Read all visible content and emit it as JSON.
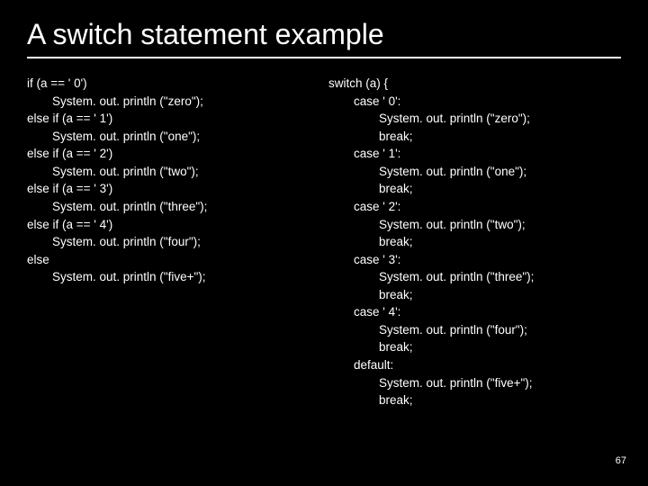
{
  "title": "A switch statement example",
  "page_number": "67",
  "left_code": [
    {
      "t": "if (a == ' 0')",
      "i": 0
    },
    {
      "t": "System. out. println (\"zero\");",
      "i": 1
    },
    {
      "t": "else if (a == ' 1')",
      "i": 0
    },
    {
      "t": "System. out. println (\"one\");",
      "i": 1
    },
    {
      "t": "else if (a == ' 2')",
      "i": 0
    },
    {
      "t": "System. out. println (\"two\");",
      "i": 1
    },
    {
      "t": "else if (a == ' 3')",
      "i": 0
    },
    {
      "t": "System. out. println (\"three\");",
      "i": 1
    },
    {
      "t": "else if (a == ' 4')",
      "i": 0
    },
    {
      "t": "System. out. println (\"four\");",
      "i": 1
    },
    {
      "t": "else",
      "i": 0
    },
    {
      "t": "System. out. println (\"five+\");",
      "i": 1
    }
  ],
  "right_code": [
    {
      "t": "switch (a) {",
      "i": 0
    },
    {
      "t": "case ' 0':",
      "i": 1
    },
    {
      "t": "System. out. println (\"zero\");",
      "i": 2
    },
    {
      "t": "break;",
      "i": 2
    },
    {
      "t": "case ' 1':",
      "i": 1
    },
    {
      "t": "System. out. println (\"one\");",
      "i": 2
    },
    {
      "t": "break;",
      "i": 2
    },
    {
      "t": "case ' 2':",
      "i": 1
    },
    {
      "t": "System. out. println (\"two\");",
      "i": 2
    },
    {
      "t": "break;",
      "i": 2
    },
    {
      "t": "case ' 3':",
      "i": 1
    },
    {
      "t": "System. out. println (\"three\");",
      "i": 2
    },
    {
      "t": "break;",
      "i": 2
    },
    {
      "t": "case ' 4':",
      "i": 1
    },
    {
      "t": "System. out. println (\"four\");",
      "i": 2
    },
    {
      "t": "break;",
      "i": 2
    },
    {
      "t": "default:",
      "i": 1
    },
    {
      "t": "System. out. println (\"five+\");",
      "i": 2
    },
    {
      "t": "break;",
      "i": 2
    }
  ]
}
